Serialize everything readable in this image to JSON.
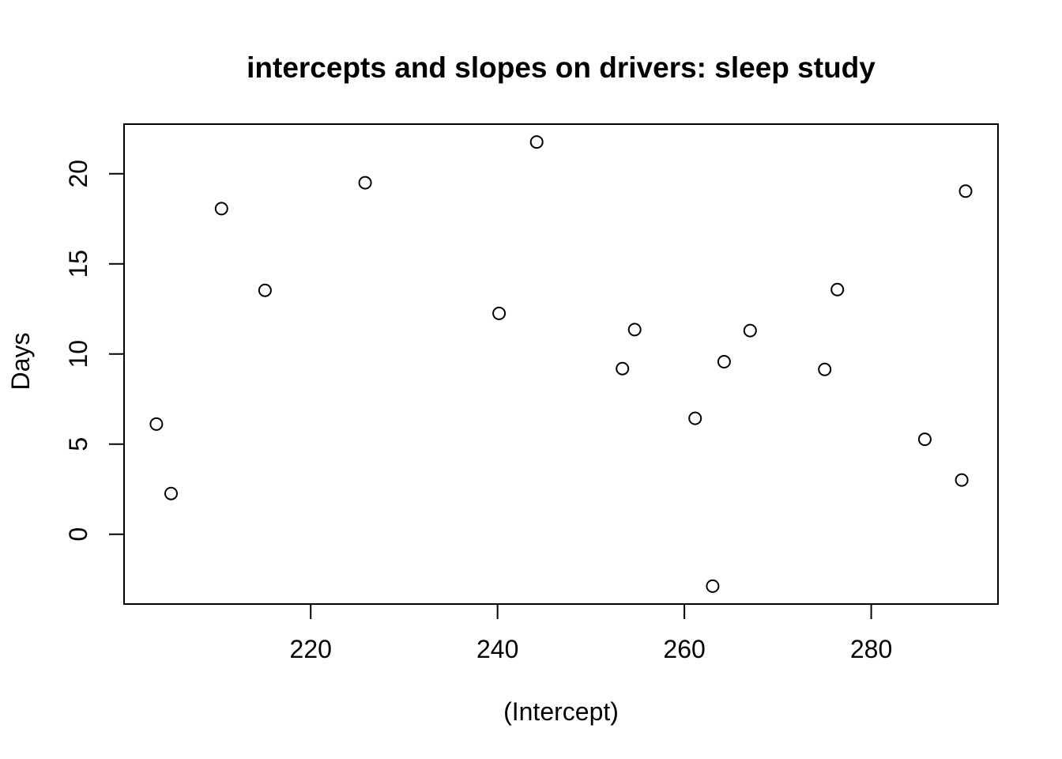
{
  "figure": {
    "background_color": "#ffffff",
    "foreground_color": "#000000"
  },
  "chart_data": {
    "type": "scatter",
    "title": "intercepts and slopes on drivers: sleep study",
    "xlabel": "(Intercept)",
    "ylabel": "Days",
    "xlim": [
      200.02,
      293.57
    ],
    "ylim": [
      -3.87,
      22.75
    ],
    "x_ticks": [
      220,
      240,
      260,
      280
    ],
    "y_ticks": [
      0,
      5,
      10,
      15,
      20
    ],
    "grid": false,
    "legend": "none",
    "marker": {
      "shape": "open-circle",
      "radius_px": 7.5,
      "stroke_px": 2,
      "color": "#000000"
    },
    "points": [
      {
        "x": 244.19,
        "y": 21.76
      },
      {
        "x": 205.05,
        "y": 2.26
      },
      {
        "x": 203.48,
        "y": 6.11
      },
      {
        "x": 289.69,
        "y": 3.01
      },
      {
        "x": 285.74,
        "y": 5.27
      },
      {
        "x": 264.25,
        "y": 9.57
      },
      {
        "x": 275.02,
        "y": 9.14
      },
      {
        "x": 240.16,
        "y": 12.25
      },
      {
        "x": 263.03,
        "y": -2.88
      },
      {
        "x": 290.1,
        "y": 19.03
      },
      {
        "x": 215.11,
        "y": 13.53
      },
      {
        "x": 225.83,
        "y": 19.5
      },
      {
        "x": 261.15,
        "y": 6.43
      },
      {
        "x": 276.37,
        "y": 13.57
      },
      {
        "x": 254.68,
        "y": 11.35
      },
      {
        "x": 210.45,
        "y": 18.06
      },
      {
        "x": 253.37,
        "y": 9.19
      },
      {
        "x": 267.04,
        "y": 11.3
      }
    ]
  }
}
